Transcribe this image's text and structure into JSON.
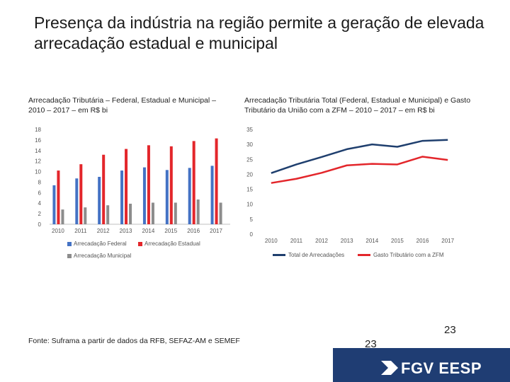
{
  "title": "Presença da indústria na região permite a geração de elevada arrecadação estadual e municipal",
  "left_caption": "Arrecadação Tributária – Federal, Estadual e Municipal – 2010 – 2017 – em R$ bi",
  "right_caption": "Arrecadação Tributária Total (Federal, Estadual e Municipal) e Gasto Tributário da União com a ZFM – 2010 – 2017 – em R$ bi",
  "source": "Fonte: Suframa a partir de dados da RFB, SEFAZ-AM e SEMEF",
  "page_number": "23",
  "footer_number": "23",
  "logo_text": "FGV EESP",
  "colors": {
    "federal": "#4472c4",
    "estadual": "#e3262b",
    "municipal": "#8c8c8c",
    "total": "#1f3f6e",
    "gasto": "#e3262b",
    "footer": "#1f3d73"
  },
  "chart_data": [
    {
      "type": "bar",
      "categories": [
        "2010",
        "2011",
        "2012",
        "2013",
        "2014",
        "2015",
        "2016",
        "2017"
      ],
      "yticks": [
        "0",
        "2",
        "4",
        "6",
        "8",
        "10",
        "12",
        "14",
        "16",
        "18"
      ],
      "ylim": [
        0,
        18
      ],
      "grid": false,
      "legend": "bottom",
      "series": [
        {
          "name": "Arrecadação Federal",
          "values": [
            7.4,
            8.7,
            9.0,
            10.2,
            10.8,
            10.3,
            10.7,
            11.1
          ]
        },
        {
          "name": "Arrecadação Estadual",
          "values": [
            10.2,
            11.4,
            13.2,
            14.3,
            15.0,
            14.8,
            15.8,
            16.3
          ]
        },
        {
          "name": "Arrecadação Municipal",
          "values": [
            2.8,
            3.2,
            3.6,
            3.9,
            4.1,
            4.1,
            4.7,
            4.1
          ]
        }
      ]
    },
    {
      "type": "line",
      "categories": [
        "2010",
        "2011",
        "2012",
        "2013",
        "2014",
        "2015",
        "2016",
        "2017"
      ],
      "yticks": [
        "0",
        "5",
        "10",
        "15",
        "20",
        "25",
        "30",
        "35"
      ],
      "ylim": [
        0,
        35
      ],
      "grid": false,
      "legend": "bottom",
      "series": [
        {
          "name": "Total de Arrecadações",
          "values": [
            20.4,
            23.3,
            25.8,
            28.4,
            30.0,
            29.2,
            31.2,
            31.5
          ]
        },
        {
          "name": "Gasto Tributário com a ZFM",
          "values": [
            17.1,
            18.5,
            20.5,
            23.0,
            23.5,
            23.3,
            25.9,
            24.8
          ]
        }
      ]
    }
  ]
}
